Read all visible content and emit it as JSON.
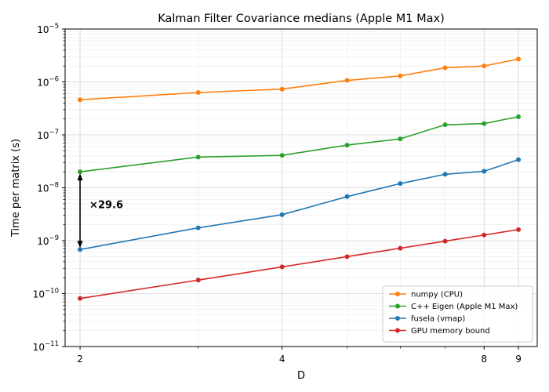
{
  "chart_data": {
    "type": "line",
    "title": "Kalman Filter Covariance medians (Apple M1 Max)",
    "xlabel": "D",
    "ylabel": "Time per matrix (s)",
    "xscale": "log",
    "yscale": "log",
    "xlim": [
      1.9,
      9.6
    ],
    "ylim": [
      1e-11,
      1e-05
    ],
    "x_ticks": [
      {
        "value": 2,
        "label": "2"
      },
      {
        "value": 4,
        "label": "4"
      },
      {
        "value": 8,
        "label": "8"
      },
      {
        "value": 9,
        "label": "9"
      }
    ],
    "y_ticks": [
      {
        "value": 1e-11,
        "base": "10",
        "exp": "−11"
      },
      {
        "value": 1e-10,
        "base": "10",
        "exp": "−10"
      },
      {
        "value": 1e-09,
        "base": "10",
        "exp": "−9"
      },
      {
        "value": 1e-08,
        "base": "10",
        "exp": "−8"
      },
      {
        "value": 1e-07,
        "base": "10",
        "exp": "−7"
      },
      {
        "value": 1e-06,
        "base": "10",
        "exp": "−6"
      },
      {
        "value": 1e-05,
        "base": "10",
        "exp": "−5"
      }
    ],
    "grid": true,
    "legend_position": "bottom-right",
    "x": [
      2,
      3,
      4,
      5,
      6,
      7,
      8,
      9
    ],
    "series": [
      {
        "name": "numpy (CPU)",
        "color": "#ff7f0e",
        "values": [
          4.6e-07,
          6.3e-07,
          7.3e-07,
          1.07e-06,
          1.3e-06,
          1.85e-06,
          2e-06,
          2.7e-06
        ]
      },
      {
        "name": "C++ Eigen (Apple M1 Max)",
        "color": "#2ca02c",
        "values": [
          2e-08,
          3.8e-08,
          4.1e-08,
          6.4e-08,
          8.4e-08,
          1.55e-07,
          1.63e-07,
          2.2e-07
        ]
      },
      {
        "name": "fusela (vmap)",
        "color": "#1f77b4",
        "values": [
          6.8e-10,
          1.75e-09,
          3.1e-09,
          6.8e-09,
          1.2e-08,
          1.8e-08,
          2.05e-08,
          3.4e-08
        ]
      },
      {
        "name": "GPU memory bound",
        "color": "#d62728",
        "values": [
          8.1e-11,
          1.8e-10,
          3.2e-10,
          5e-10,
          7.2e-10,
          9.8e-10,
          1.28e-09,
          1.62e-09
        ]
      }
    ],
    "annotations": [
      {
        "text": "×29.6",
        "x": 2,
        "y_from": 6.8e-10,
        "y_to": 2e-08,
        "type": "double-arrow"
      }
    ]
  }
}
